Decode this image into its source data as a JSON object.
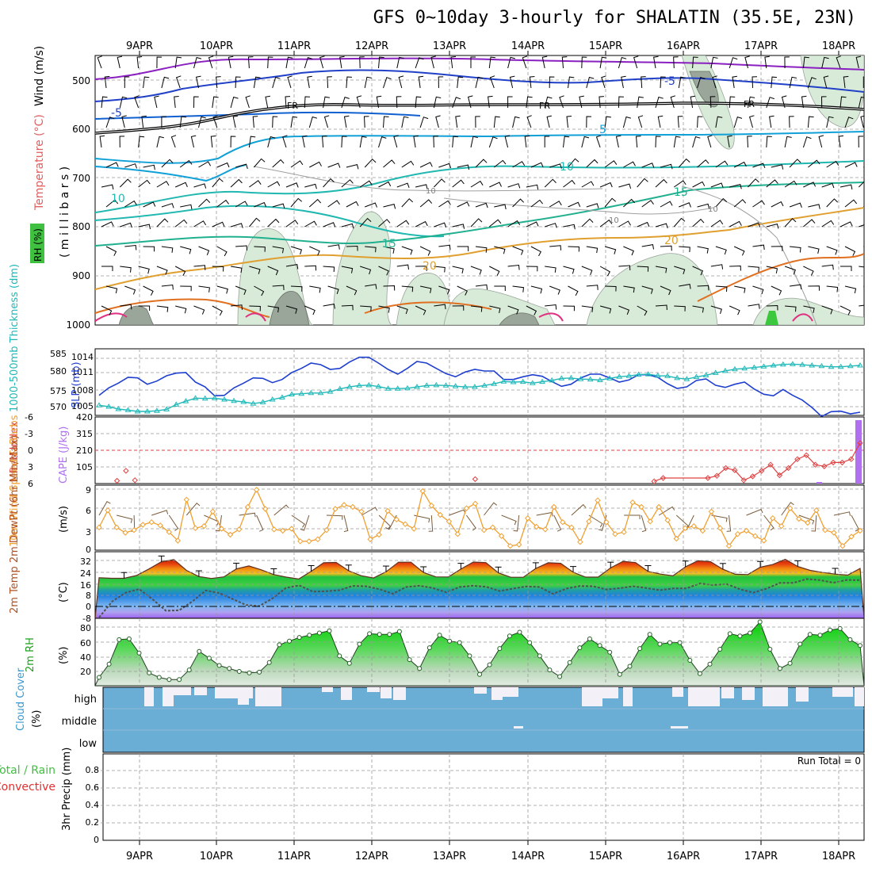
{
  "title": "GFS 0~10day 3-hourly for SHALATIN (35.5E, 23N)",
  "date_labels": [
    "9APR",
    "10APR",
    "11APR",
    "12APR",
    "13APR",
    "14APR",
    "15APR",
    "16APR",
    "17APR",
    "18APR"
  ],
  "colors": {
    "rh": "#2fbf2f",
    "slp": "#1f3fcf",
    "thickness": "#20b8b8",
    "li": "#e04040",
    "cape": "#b070f0",
    "wind": "#f0a030",
    "cloud": "#6aaed6",
    "precip_total": "#40c040",
    "precip_conv": "#e03030"
  },
  "panels": {
    "profile": {
      "ylabel_parts": [
        "RH (%)",
        "Temperature (°C)",
        "Wind (m/s)"
      ],
      "ylabel_units": "( m i l l i b a r s )",
      "y_ticks": [
        "500",
        "600",
        "700",
        "800",
        "900",
        "1000"
      ],
      "temp_labels": [
        "-5",
        "-5",
        "5",
        "10",
        "10",
        "15",
        "15",
        "20",
        "20"
      ],
      "freeze_labels": [
        "FR",
        "FR",
        "FR"
      ],
      "rh_labels": [
        "10",
        "10",
        "10"
      ]
    },
    "pressure": {
      "ylabel_left": "1000-500mb Thickness (dm)",
      "ylabel_right": "SLP (mb)",
      "left_ticks": [
        "585",
        "580",
        "575",
        "570"
      ],
      "right_ticks": [
        "1014",
        "1011",
        "1008",
        "1005"
      ]
    },
    "stability": {
      "ylabel_left": "Lifted Index",
      "ylabel_right": "CAPE (J/kg)",
      "left_ticks": [
        "-6",
        "-3",
        "0",
        "3",
        "6"
      ],
      "right_ticks": [
        "420",
        "315",
        "210",
        "105"
      ]
    },
    "wind10m": {
      "ylabel": "10m Wind Speed & Barbs",
      "ylabel_units": "(m/s)",
      "y_ticks": [
        "9",
        "6",
        "3",
        "0"
      ]
    },
    "temp2m": {
      "ylabel": "2m Temp 2m DewPt (6hr Min/Max)",
      "ylabel_units": "(°C)",
      "y_ticks": [
        "32",
        "24",
        "16",
        "8",
        "0",
        "-8"
      ]
    },
    "rh2m": {
      "ylabel": "2m RH",
      "ylabel_units": "(%)",
      "y_ticks": [
        "80",
        "60",
        "40",
        "20"
      ]
    },
    "cloud": {
      "ylabel": "Cloud Cover",
      "ylabel_units": "(%)",
      "levels": [
        "high",
        "middle",
        "low"
      ]
    },
    "precip": {
      "ylabel_total": "Total / Rain",
      "ylabel_conv": "Convective",
      "ylabel_units": "3hr Precip (mm)",
      "y_ticks": [
        "0.8",
        "0.6",
        "0.4",
        "0.2",
        "0"
      ],
      "run_total": "Run Total = 0"
    }
  },
  "chart_data": {
    "type": "line",
    "x": "3-hourly forecast steps, 8 APR 12Z to 18 APR 06Z (80 steps)",
    "slp_mb": [
      1007.0,
      1008.4,
      1009.3,
      1010.4,
      1010.3,
      1009.1,
      1009.7,
      1010.7,
      1011.2,
      1011.3,
      1009.5,
      1008.6,
      1006.9,
      1007.0,
      1008.4,
      1009.3,
      1010.3,
      1010.2,
      1009.4,
      1010.0,
      1011.3,
      1012.1,
      1013.1,
      1012.8,
      1011.9,
      1012.1,
      1013.3,
      1014.2,
      1014.2,
      1013.1,
      1011.9,
      1011.0,
      1012.1,
      1013.4,
      1013.1,
      1012.1,
      1011.1,
      1010.5,
      1011.4,
      1011.9,
      1011.6,
      1011.6,
      1010.0,
      1010.0,
      1010.5,
      1010.9,
      1010.6,
      1009.6,
      1008.7,
      1009.1,
      1010.3,
      1011.0,
      1011.0,
      1010.3,
      1009.5,
      1009.9,
      1010.9,
      1010.9,
      1010.4,
      1009.2,
      1008.3,
      1008.6,
      1009.8,
      1010.1,
      1008.9,
      1008.5,
      1009.1,
      1009.5,
      1008.2,
      1007.2,
      1006.9,
      1008.1,
      1007.0,
      1006.1,
      1004.7,
      1003.0,
      1003.9,
      1004.0,
      1003.5,
      1003.8
    ],
    "thickness_dm": [
      570.4,
      570.0,
      569.3,
      569.0,
      568.6,
      568.6,
      568.8,
      569.2,
      570.6,
      571.6,
      572.5,
      572.4,
      572.5,
      572.1,
      571.7,
      571.4,
      570.9,
      571.3,
      572.1,
      572.7,
      573.6,
      573.8,
      574.0,
      574.0,
      574.4,
      575.2,
      575.8,
      576.2,
      576.3,
      575.9,
      575.3,
      575.3,
      575.4,
      575.8,
      576.2,
      576.3,
      576.2,
      576.0,
      575.8,
      575.8,
      576.2,
      576.7,
      577.4,
      577.2,
      577.3,
      576.9,
      577.3,
      577.7,
      578.3,
      578.4,
      578.1,
      578.0,
      577.8,
      578.3,
      578.8,
      579.0,
      579.4,
      579.5,
      579.1,
      579.0,
      578.4,
      578.1,
      578.7,
      579.2,
      579.9,
      580.5,
      581.0,
      581.2,
      581.5,
      581.8,
      582.1,
      582.4,
      582.5,
      582.3,
      582.1,
      581.9,
      581.7,
      581.7,
      581.9,
      582.1
    ],
    "lifted_index": [
      null,
      null,
      5.5,
      3.7,
      5.4,
      null,
      null,
      null,
      null,
      null,
      null,
      null,
      null,
      null,
      null,
      null,
      null,
      null,
      null,
      null,
      null,
      null,
      null,
      null,
      null,
      null,
      null,
      null,
      null,
      null,
      null,
      null,
      null,
      null,
      null,
      null,
      null,
      null,
      null,
      null,
      null,
      null,
      5.2,
      null,
      null,
      null,
      null,
      null,
      null,
      null,
      null,
      null,
      null,
      null,
      null,
      null,
      null,
      null,
      null,
      null,
      null,
      null,
      5.6,
      5.0,
      null,
      null,
      null,
      null,
      5.0,
      4.6,
      3.2,
      3.6,
      5.4,
      4.7,
      3.7,
      2.6,
      4.5,
      3.2,
      1.6,
      0.9,
      2.6,
      2.9,
      2.2,
      2.2,
      1.6,
      -1.3
    ],
    "cape_jkg": {
      "final_step": 400,
      "second_to_last_region": 10
    },
    "wind10m_ms": [
      3.2,
      5.8,
      3.2,
      2.4,
      2.8,
      3.6,
      4.0,
      3.5,
      2.5,
      1.2,
      7.4,
      3.1,
      3.4,
      5.6,
      3.0,
      2.1,
      2.9,
      6.3,
      8.9,
      6.0,
      2.9,
      2.7,
      3.0,
      1.1,
      1.1,
      1.4,
      2.8,
      6.0,
      6.6,
      6.3,
      5.6,
      1.4,
      2.1,
      5.7,
      4.4,
      3.7,
      3.0,
      8.7,
      6.5,
      5.1,
      4.1,
      2.2,
      6.1,
      6.8,
      2.8,
      3.2,
      1.9,
      0.4,
      0.6,
      4.6,
      3.3,
      2.9,
      6.3,
      4.0,
      3.2,
      1.0,
      4.1,
      7.3,
      4.0,
      2.2,
      2.5,
      7.0,
      6.3,
      4.1,
      6.3,
      4.3,
      1.5,
      3.1,
      3.4,
      2.7,
      5.6,
      3.1,
      0.4,
      2.2,
      2.7,
      1.9,
      1.2,
      4.6,
      3.4,
      6.1,
      4.5,
      3.9,
      5.8,
      2.8,
      2.4,
      0.4,
      1.8,
      2.7
    ],
    "temp2m_c": [
      20.0,
      19.6,
      19.6,
      21.5,
      26.1,
      31.1,
      32.6,
      25.1,
      20.8,
      19.5,
      20.6,
      26.1,
      28.2,
      25.5,
      22.2,
      20.4,
      19.1,
      24.4,
      30.4,
      30.6,
      24.8,
      21.4,
      19.8,
      24.1,
      30.8,
      30.8,
      23.6,
      20.6,
      20.5,
      26.0,
      30.9,
      30.5,
      23.4,
      20.3,
      20.3,
      26.4,
      30.4,
      30.0,
      23.8,
      20.4,
      20.4,
      26.8,
      31.4,
      30.5,
      24.4,
      22.5,
      21.3,
      27.6,
      31.8,
      31.2,
      25.9,
      22.4,
      22.2,
      27.3,
      29.2,
      32.8,
      27.8,
      25.1,
      23.6,
      22.5,
      21.8,
      26.4
    ],
    "dewpoint2m_c": [
      -7.6,
      3.6,
      9.6,
      12.1,
      5.0,
      -3.0,
      -2.7,
      3.6,
      11.1,
      9.3,
      5.2,
      1.0,
      0.3,
      5.7,
      12.9,
      14.6,
      10.3,
      10.6,
      11.3,
      14.3,
      14.0,
      12.0,
      8.8,
      13.5,
      14.4,
      12.8,
      9.8,
      13.5,
      14.4,
      13.7,
      10.7,
      12.4,
      13.9,
      13.5,
      8.7,
      12.4,
      14.2,
      14.0,
      11.8,
      12.7,
      14.0,
      12.8,
      11.3,
      12.5,
      12.6,
      16.0,
      14.9,
      15.6,
      12.0,
      9.6,
      12.4,
      16.4,
      16.4,
      19.1,
      18.3,
      16.5,
      18.4,
      18.3
    ],
    "rh2m_pct": [
      12,
      30,
      63,
      64,
      45,
      18,
      12,
      9,
      9,
      22,
      47,
      38,
      28,
      24,
      20,
      18,
      19,
      32,
      56,
      61,
      66,
      69,
      72,
      75,
      41,
      31,
      57,
      71,
      70,
      70,
      74,
      36,
      24,
      52,
      69,
      61,
      59,
      41,
      16,
      29,
      51,
      68,
      73,
      59,
      41,
      22,
      13,
      32,
      52,
      64,
      55,
      46,
      16,
      27,
      51,
      70,
      57,
      59,
      59,
      35,
      17,
      30,
      50,
      71,
      68,
      72,
      87,
      50,
      24,
      31,
      57,
      70,
      69,
      76,
      78,
      63,
      55
    ]
  }
}
